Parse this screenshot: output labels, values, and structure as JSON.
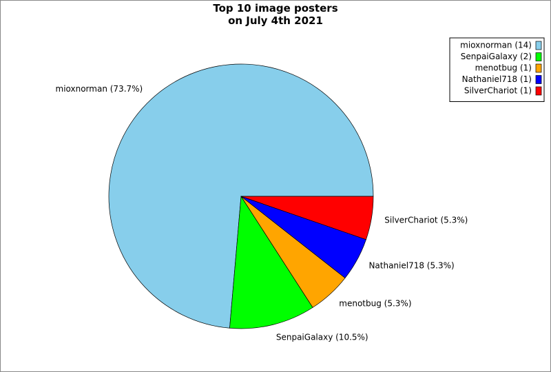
{
  "chart_data": {
    "type": "pie",
    "title": "Top 10 image posters\non July 4th 2021",
    "categories": [
      "mioxnorman (14)",
      "SenpaiGalaxy (2)",
      "menotbug (1)",
      "Nathaniel718 (1)",
      "SilverChariot (1)"
    ],
    "values": [
      73.7,
      10.5,
      5.3,
      5.3,
      5.3
    ],
    "value_labels": [
      "mioxnorman (73.7%)",
      "SenpaiGalaxy (10.5%)",
      "menotbug (5.3%)",
      "Nathaniel718 (5.3%)",
      "SilverChariot (5.3%)"
    ],
    "colors": [
      "#87ceeb",
      "#00ff00",
      "#ffa500",
      "#0000ff",
      "#ff0000"
    ],
    "legend": "upper right"
  }
}
